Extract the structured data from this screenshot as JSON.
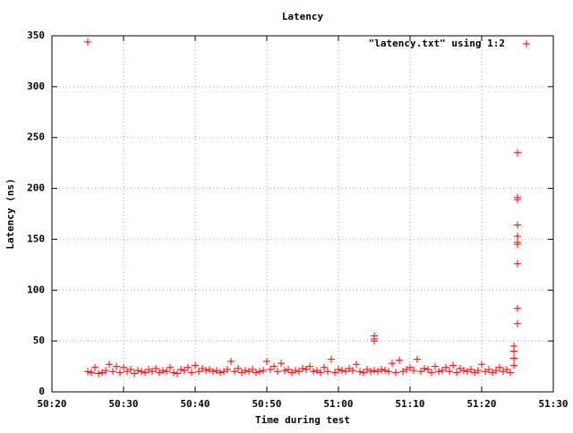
{
  "chart_data": {
    "type": "scatter",
    "title": "Latency",
    "x_label": "Time during test",
    "y_label": "Latency (ns)",
    "xlim": [
      3020,
      3090
    ],
    "ylim": [
      0,
      350
    ],
    "xticks": [
      {
        "value": 3020,
        "label": "50:20"
      },
      {
        "value": 3030,
        "label": "50:30"
      },
      {
        "value": 3040,
        "label": "50:40"
      },
      {
        "value": 3050,
        "label": "50:50"
      },
      {
        "value": 3060,
        "label": "51:00"
      },
      {
        "value": 3070,
        "label": "51:10"
      },
      {
        "value": 3080,
        "label": "51:20"
      },
      {
        "value": 3090,
        "label": "51:30"
      }
    ],
    "yticks": [
      0,
      50,
      100,
      150,
      200,
      250,
      300,
      350
    ],
    "grid": true,
    "legend": "top-right",
    "series": [
      {
        "name": "\"latency.txt\" using 1:2",
        "color": "#ff0000",
        "x": [
          3025,
          3025.5,
          3026,
          3026.5,
          3027,
          3027.5,
          3028,
          3028.5,
          3029,
          3029.5,
          3030,
          3030.5,
          3031,
          3031.5,
          3032,
          3032.5,
          3033,
          3033.5,
          3034,
          3034.5,
          3035,
          3035.5,
          3036,
          3036.5,
          3037,
          3037.5,
          3038,
          3038.5,
          3039,
          3039.5,
          3040,
          3040.5,
          3041,
          3041.5,
          3042,
          3042.5,
          3043,
          3043.5,
          3044,
          3044.5,
          3045,
          3045.5,
          3046,
          3046.5,
          3047,
          3047.5,
          3048,
          3048.5,
          3049,
          3049.5,
          3050,
          3050.5,
          3051,
          3051.5,
          3052,
          3052.5,
          3053,
          3053.5,
          3054,
          3054.5,
          3055,
          3055.5,
          3056,
          3056.5,
          3057,
          3057.5,
          3058,
          3058.5,
          3059,
          3059.5,
          3060,
          3060.5,
          3061,
          3061.5,
          3062,
          3062.5,
          3063,
          3063.5,
          3064,
          3064.5,
          3065,
          3065.5,
          3066,
          3066.5,
          3067,
          3067.5,
          3068,
          3068.5,
          3069,
          3069.5,
          3070,
          3070.5,
          3071,
          3071.5,
          3072,
          3072.5,
          3073,
          3073.5,
          3074,
          3074.5,
          3075,
          3075.5,
          3076,
          3076.5,
          3077,
          3077.5,
          3078,
          3078.5,
          3079,
          3079.5,
          3080,
          3080.5,
          3081,
          3081.5,
          3082,
          3082.5,
          3083,
          3083.5,
          3084,
          3084.5,
          3025,
          3065,
          3065,
          3065,
          3085,
          3085,
          3085,
          3085,
          3085,
          3085,
          3085,
          3085,
          3085,
          3085,
          3084.5,
          3084.5,
          3084.5
        ],
        "values": [
          20,
          19,
          24,
          18,
          19,
          21,
          27,
          20,
          25,
          19,
          24,
          20,
          22,
          18,
          21,
          20,
          19,
          22,
          20,
          23,
          19,
          21,
          20,
          24,
          19,
          18,
          22,
          21,
          24,
          19,
          26,
          20,
          23,
          21,
          22,
          20,
          21,
          19,
          20,
          22,
          30,
          20,
          23,
          19,
          21,
          20,
          22,
          19,
          20,
          21,
          30,
          22,
          25,
          20,
          28,
          21,
          22,
          19,
          21,
          20,
          23,
          22,
          25,
          20,
          21,
          19,
          24,
          20,
          32,
          19,
          22,
          21,
          20,
          23,
          21,
          27,
          20,
          19,
          22,
          20,
          21,
          20,
          22,
          21,
          20,
          28,
          19,
          31,
          20,
          22,
          24,
          21,
          32,
          20,
          23,
          22,
          19,
          25,
          20,
          21,
          24,
          20,
          26,
          19,
          23,
          21,
          20,
          22,
          19,
          21,
          27,
          20,
          22,
          19,
          21,
          24,
          20,
          22,
          19,
          26,
          344,
          52,
          55,
          50,
          235,
          191,
          189,
          164,
          153,
          147,
          145,
          126,
          82,
          67,
          45,
          40,
          33
        ]
      }
    ]
  }
}
